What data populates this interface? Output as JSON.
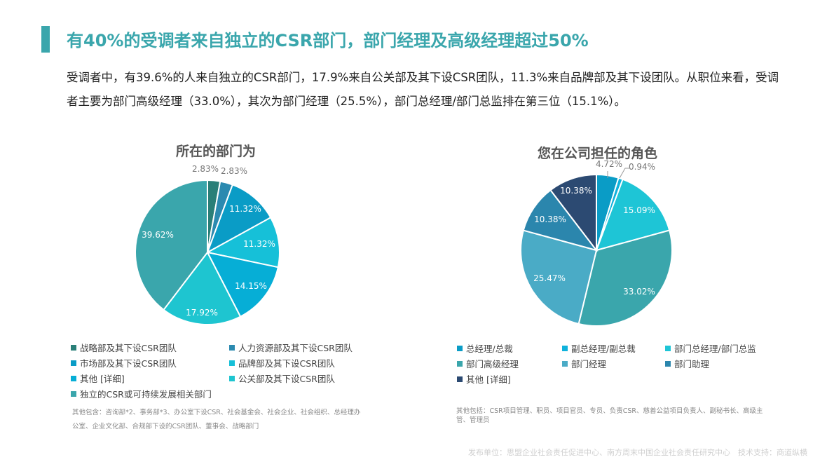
{
  "header": {
    "title": "有40%的受调者来自独立的CSR部门，部门经理及高级经理超过50%",
    "accent_color": "#3aa6ac"
  },
  "summary": {
    "text": "受调者中，有39.6%的人来自独立的CSR部门，17.9%来自公关部及其下设CSR团队，11.3%来自品牌部及其下设团队。从职位来看，受调者主要为部门高级经理（33.0%），其次为部门经理（25.5%），部门总经理/部门总监排在第三位（15.1%）。"
  },
  "charts": {
    "left": {
      "title": "所在的部门为",
      "legend": [
        {
          "label": "战略部及其下设CSR团队",
          "color": "#2a7f78"
        },
        {
          "label": "人力资源部及其下设CSR团队",
          "color": "#2b8ab0"
        },
        {
          "label": "市场部及其下设CSR团队",
          "color": "#0a9cc6"
        },
        {
          "label": "品牌部及其下设CSR团队",
          "color": "#16c0d8"
        },
        {
          "label": "其他 [详细]",
          "color": "#06aed6"
        },
        {
          "label": "公关部及其下设CSR团队",
          "color": "#1ec5d0"
        },
        {
          "label": "独立的CSR或可持续发展相关部门",
          "color": "#3aa6ac"
        }
      ],
      "note": "其他包含：咨询部*2、事务部*3、办公室下设CSR、社会基金会、社会企业、社会组织、总经理办公室、企业文化部、合规部下设的CSR团队、董事会、战略部门"
    },
    "right": {
      "title": "您在公司担任的角色",
      "legend": [
        {
          "label": "总经理/总裁",
          "color": "#0a9cc6"
        },
        {
          "label": "副总经理/副总裁",
          "color": "#0fb2dc"
        },
        {
          "label": "部门总经理/部门总监",
          "color": "#1ec5d6"
        },
        {
          "label": "部门高级经理",
          "color": "#3aa6ac"
        },
        {
          "label": "部门经理",
          "color": "#4aabc6"
        },
        {
          "label": "部门助理",
          "color": "#2b86ad"
        },
        {
          "label": "其他 [详细]",
          "color": "#2c4a72"
        }
      ],
      "note": "其他包括：CSR项目管理、职员、项目官员、专员、负责CSR、慈善公益项目负责人、副秘书长、高级主管、管理员"
    }
  },
  "chart_data": [
    {
      "type": "pie",
      "title": "所在的部门为",
      "categories": [
        "战略部及其下设CSR团队",
        "人力资源部及其下设CSR团队",
        "市场部及其下设CSR团队",
        "品牌部及其下设CSR团队",
        "其他 [详细]",
        "公关部及其下设CSR团队",
        "独立的CSR或可持续发展相关部门"
      ],
      "values": [
        2.83,
        2.83,
        11.32,
        11.32,
        14.15,
        17.92,
        39.62
      ],
      "labels": [
        "2.83%",
        "2.83%",
        "11.32%",
        "11.32%",
        "14.15%",
        "17.92%",
        "39.62%"
      ],
      "colors": [
        "#2a7f78",
        "#2b8ab0",
        "#0a9cc6",
        "#16c0d8",
        "#06aed6",
        "#1ec5d0",
        "#3aa6ac"
      ],
      "legend_position": "bottom",
      "start_angle": "12 o'clock, clockwise"
    },
    {
      "type": "pie",
      "title": "您在公司担任的角色",
      "categories": [
        "总经理/总裁",
        "副总经理/副总裁",
        "部门总经理/部门总监",
        "部门高级经理",
        "部门经理",
        "部门助理",
        "其他 [详细]"
      ],
      "values": [
        4.72,
        0.94,
        15.09,
        33.02,
        25.47,
        10.38,
        10.38
      ],
      "labels": [
        "4.72%",
        "0.94%",
        "15.09%",
        "33.02%",
        "25.47%",
        "10.38%",
        "10.38%"
      ],
      "colors": [
        "#0a9cc6",
        "#0fb2dc",
        "#1ec5d6",
        "#3aa6ac",
        "#4aabc6",
        "#2b86ad",
        "#2c4a72"
      ],
      "legend_position": "bottom",
      "start_angle": "12 o'clock, clockwise"
    }
  ],
  "footer": {
    "text": "发布单位：思盟企业社会责任促进中心、南方周末中国企业社会责任研究中心　技术支持：商道纵横"
  }
}
